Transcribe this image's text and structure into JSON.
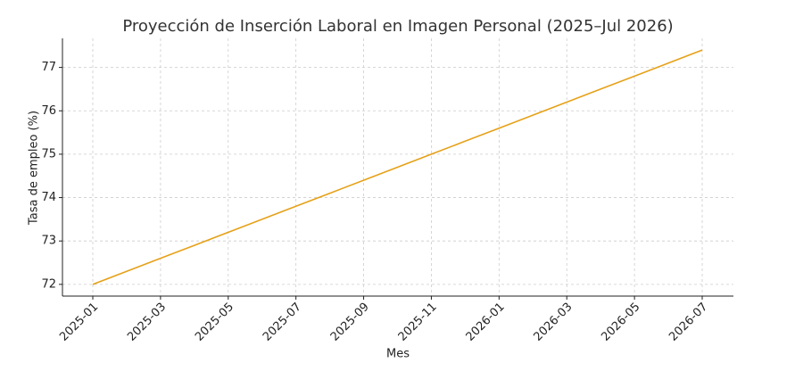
{
  "chart_data": {
    "type": "line",
    "title": "Proyección de Inserción Laboral en Imagen Personal (2025–Jul 2026)",
    "x_label": "Mes",
    "y_label": "Tasa de empleo (%)",
    "x": [
      "2025-01",
      "2025-02",
      "2025-03",
      "2025-04",
      "2025-05",
      "2025-06",
      "2025-07",
      "2025-08",
      "2025-09",
      "2025-10",
      "2025-11",
      "2025-12",
      "2026-01",
      "2026-02",
      "2026-03",
      "2026-04",
      "2026-05",
      "2026-06",
      "2026-07"
    ],
    "series": [
      {
        "name": "Tasa de empleo",
        "color": "#e6a118",
        "values": [
          72.0,
          72.3,
          72.6,
          72.9,
          73.2,
          73.5,
          73.8,
          74.1,
          74.4,
          74.7,
          75.0,
          75.3,
          75.6,
          75.9,
          76.2,
          76.5,
          76.8,
          77.1,
          77.4
        ]
      }
    ],
    "xticks": [
      "2025-01",
      "2025-03",
      "2025-05",
      "2025-07",
      "2025-09",
      "2025-11",
      "2026-01",
      "2026-03",
      "2026-05",
      "2026-07"
    ],
    "ylim": [
      71.73,
      77.67
    ],
    "yticks": [
      72,
      73,
      74,
      75,
      76,
      77
    ],
    "grid": true
  }
}
